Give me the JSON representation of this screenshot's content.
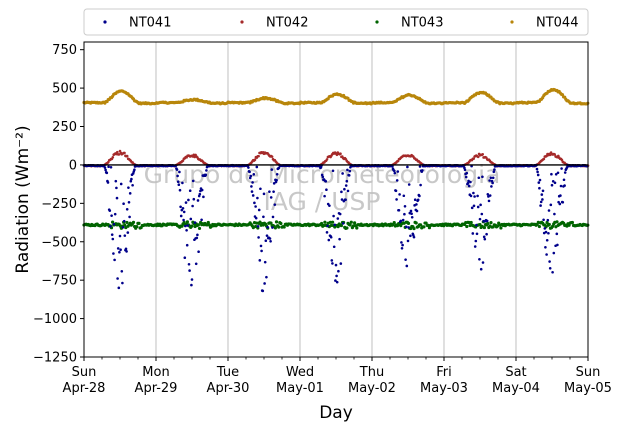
{
  "chart_data": {
    "type": "scatter",
    "ylabel": "Radiation (Wm⁻²)",
    "xlabel": "Day",
    "ylim": [
      -1250,
      800
    ],
    "yticks": [
      -1250,
      -1000,
      -750,
      -500,
      -250,
      0,
      250,
      500,
      750
    ],
    "ytick_labels": [
      "−1250",
      "−1000",
      "−750",
      "−500",
      "−250",
      "0",
      "250",
      "500",
      "750"
    ],
    "xlim": [
      "2019-04-28",
      "2019-05-05"
    ],
    "xticks": [
      {
        "date": "2019-04-28",
        "day": "Sun",
        "label": "Apr-28"
      },
      {
        "date": "2019-04-29",
        "day": "Mon",
        "label": "Apr-29"
      },
      {
        "date": "2019-04-30",
        "day": "Tue",
        "label": "Apr-30"
      },
      {
        "date": "2019-05-01",
        "day": "Wed",
        "label": "May-01"
      },
      {
        "date": "2019-05-02",
        "day": "Thu",
        "label": "May-02"
      },
      {
        "date": "2019-05-03",
        "day": "Fri",
        "label": "May-03"
      },
      {
        "date": "2019-05-04",
        "day": "Sat",
        "label": "May-04"
      },
      {
        "date": "2019-05-05",
        "day": "Sun",
        "label": "May-05"
      }
    ],
    "grid": "vertical at day ticks",
    "legend_position": "top, above plot, 4 columns",
    "watermark": [
      "Grupo de Micrometeorologia",
      "IAG / USP"
    ],
    "series": [
      {
        "name": "NT041",
        "color": "#00008b",
        "night_value": -5,
        "daily_min": [
          -800,
          -860,
          -820,
          -780,
          -740,
          -680,
          -800
        ]
      },
      {
        "name": "NT042",
        "color": "#a52a2a",
        "night_value": -5,
        "daily_max": [
          90,
          70,
          90,
          85,
          75,
          70,
          80
        ]
      },
      {
        "name": "NT043",
        "color": "#006400",
        "night_value": -390,
        "daily_range": [
          -430,
          -370
        ]
      },
      {
        "name": "NT044",
        "color": "#b8860b",
        "night_value": 405,
        "daily_max": [
          480,
          425,
          435,
          460,
          455,
          470,
          490
        ]
      }
    ]
  }
}
